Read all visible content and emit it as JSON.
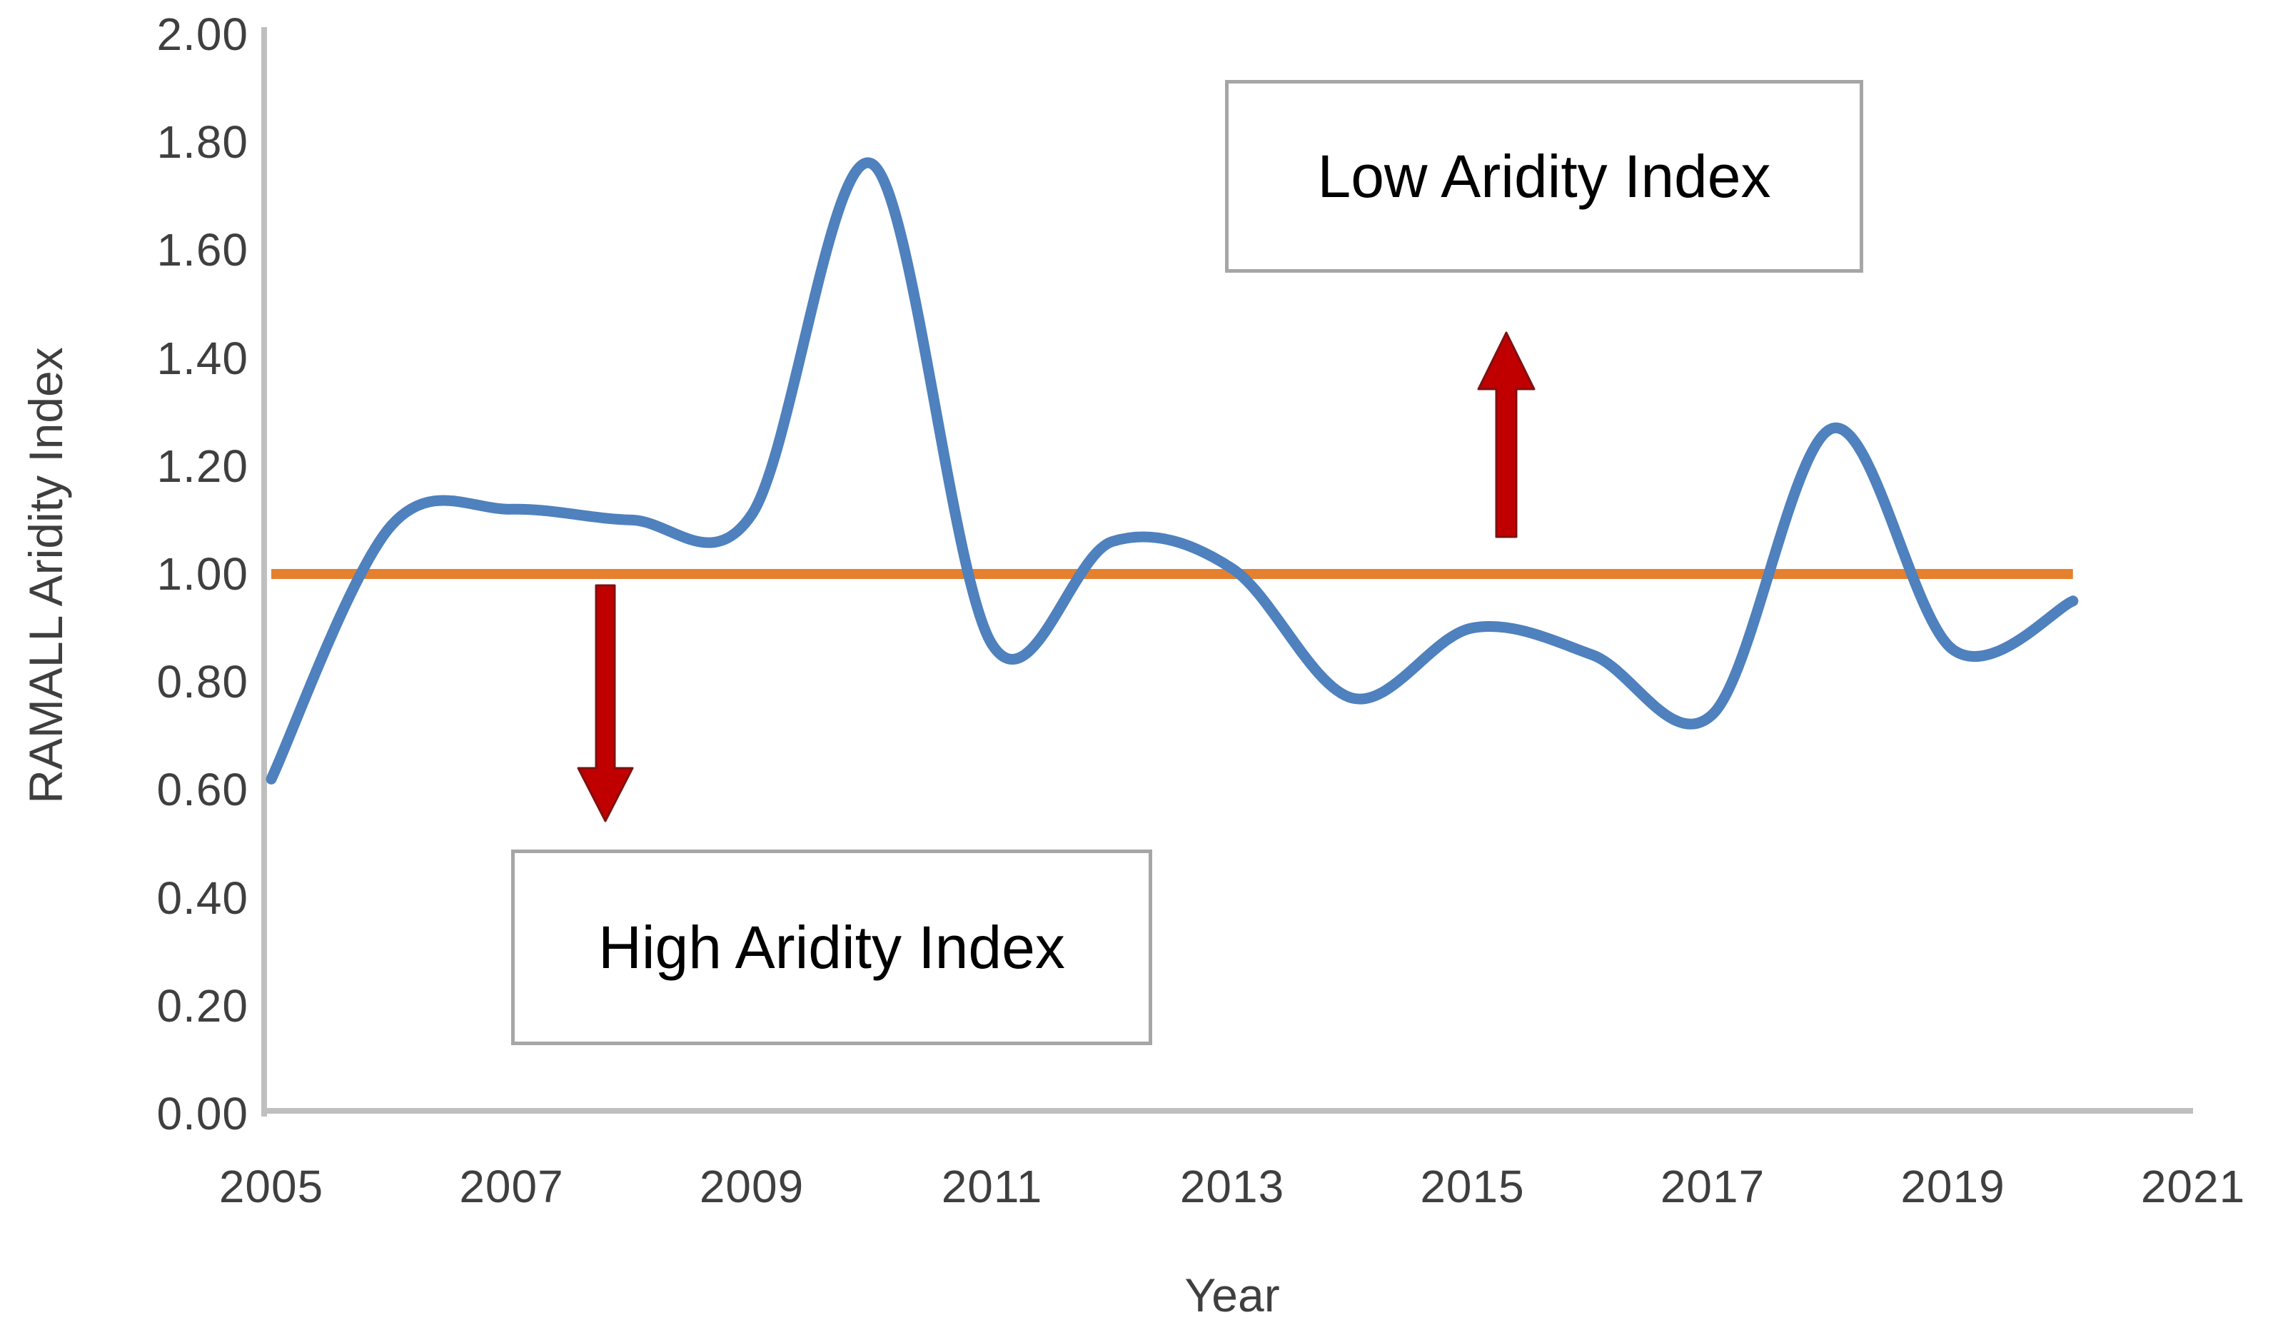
{
  "page": {
    "background": "#FFFFFF"
  },
  "chart_data": {
    "type": "line",
    "title": "",
    "xlabel": "Year",
    "ylabel": "RAMALL Aridity Index",
    "x": [
      2005,
      2006,
      2007,
      2008,
      2009,
      2010,
      2011,
      2012,
      2013,
      2014,
      2015,
      2016,
      2017,
      2018,
      2019,
      2020
    ],
    "series": [
      {
        "id": "aridity-index-smooth-line",
        "color": "#4E81BD",
        "smooth": true,
        "values": [
          0.62,
          1.09,
          1.12,
          1.1,
          1.11,
          1.76,
          0.87,
          1.06,
          1.01,
          0.77,
          0.9,
          0.85,
          0.74,
          1.27,
          0.86,
          0.95
        ]
      },
      {
        "id": "reference-line",
        "color": "#E5802F",
        "constant_value": 1.0,
        "x_start": 2005,
        "x_end": 2020
      }
    ],
    "xlim": [
      2005,
      2021
    ],
    "ylim": [
      0,
      2
    ],
    "x_ticks": [
      "2005",
      "2007",
      "2009",
      "2011",
      "2013",
      "2015",
      "2017",
      "2019",
      "2021"
    ],
    "y_ticks": [
      "2.00",
      "1.80",
      "1.60",
      "1.40",
      "1.20",
      "1.00",
      "0.80",
      "0.60",
      "0.40",
      "0.20",
      "0.00"
    ],
    "grid": false,
    "legend": "none",
    "axis_color": "#BFBFBF",
    "tick_label_color": "#3F3F3F",
    "axis_title_color": "#3F3F3F",
    "annotation_border_color": "#A6A6A6",
    "annotations": [
      {
        "id": "low",
        "text": "Low Aridity Index",
        "arrow_direction": "up",
        "arrow_color": "#C00000"
      },
      {
        "id": "high",
        "text": "High Aridity Index",
        "arrow_direction": "down",
        "arrow_color": "#C00000"
      }
    ]
  }
}
